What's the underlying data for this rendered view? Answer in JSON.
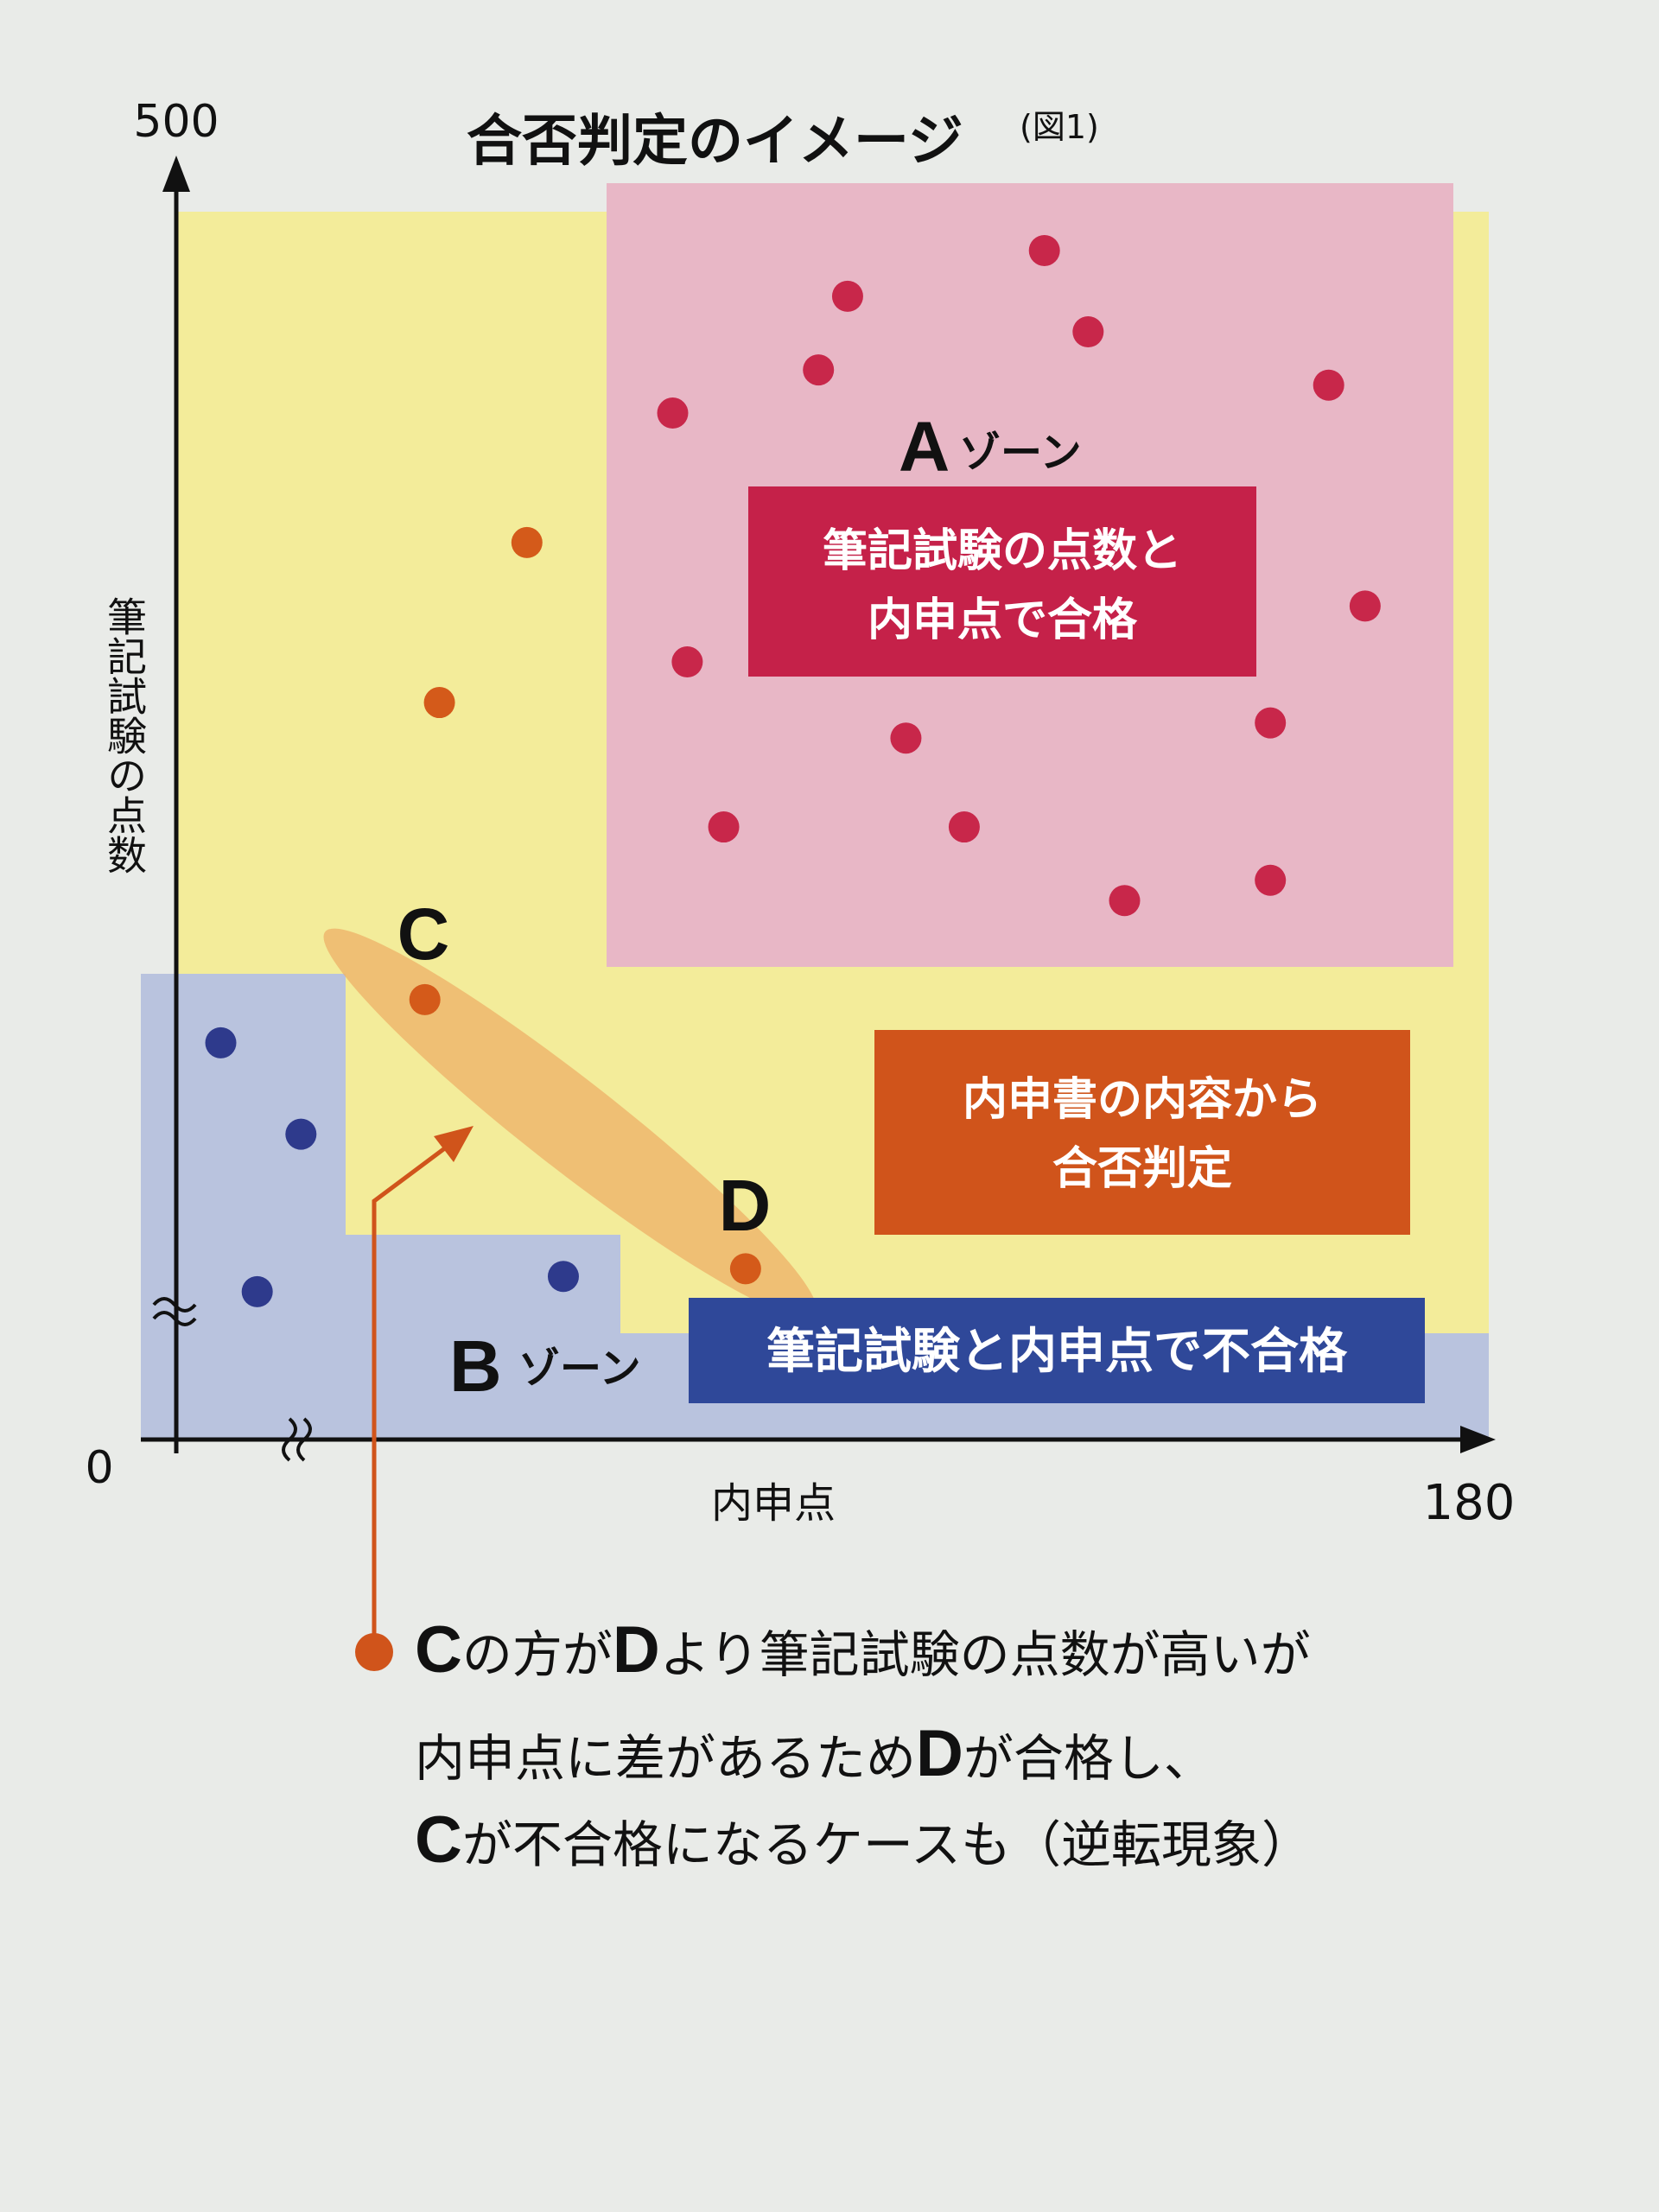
{
  "title": "合否判定のイメージ",
  "figure_ref": "(図1)",
  "colors": {
    "a_zone": "#e8b7c6",
    "background_zone": "#f3ec9a",
    "b_zone": "#b9c3de",
    "a_dot": "#c8274a",
    "c_d_dot": "#d45a1a",
    "b_dot": "#2e3a8c",
    "a_box": "#c52149",
    "middle_box": "#d0541b",
    "b_box": "#2f4899"
  },
  "chart_data": {
    "type": "scatter",
    "xlabel": "内申点",
    "ylabel": "筆記試験の点数",
    "x_ticks": [
      "0",
      "180"
    ],
    "y_ticks": [
      "500"
    ],
    "xlim": [
      0,
      180
    ],
    "ylim": [
      0,
      500
    ],
    "axis_break": true,
    "grid": false,
    "series": [
      {
        "zone": "A",
        "color": "#c8274a",
        "points": [
          [
            122,
            468
          ],
          [
            95,
            450
          ],
          [
            128,
            436
          ],
          [
            91,
            421
          ],
          [
            161,
            415
          ],
          [
            71,
            404
          ],
          [
            166,
            328
          ],
          [
            73,
            306
          ],
          [
            153,
            282
          ],
          [
            103,
            276
          ],
          [
            78,
            241
          ],
          [
            111,
            241
          ],
          [
            153,
            220
          ],
          [
            133,
            212
          ]
        ]
      },
      {
        "zone": "middle",
        "color": "#d45a1a",
        "points": [
          [
            51,
            353
          ],
          [
            39,
            290
          ],
          [
            37,
            173
          ],
          [
            81,
            67
          ]
        ]
      },
      {
        "zone": "B",
        "color": "#2e3a8c",
        "points": [
          [
            9,
            156
          ],
          [
            20,
            120
          ],
          [
            14,
            58
          ],
          [
            56,
            64
          ]
        ]
      }
    ],
    "point_labels": [
      {
        "text": "C",
        "x": 37,
        "y": 173
      },
      {
        "text": "D",
        "x": 81,
        "y": 67
      }
    ]
  },
  "zones": {
    "a": {
      "letter": "A",
      "suffix": "ゾーン",
      "box_lines": [
        "筆記試験の点数と",
        "内申点で合格"
      ]
    },
    "middle": {
      "box_lines": [
        "内申書の内容から",
        "合否判定"
      ]
    },
    "b": {
      "letter": "B",
      "suffix": "ゾーン",
      "box_text": "筆記試験と内申点で不合格"
    }
  },
  "note": {
    "line1": [
      {
        "t": "C",
        "b": true
      },
      {
        "t": "の方が"
      },
      {
        "t": "D",
        "b": true
      },
      {
        "t": "より筆記試験の点数が高いが"
      }
    ],
    "line2": [
      {
        "t": "内申点に差があるため"
      },
      {
        "t": "D",
        "b": true
      },
      {
        "t": "が合格し、"
      }
    ],
    "line3": [
      {
        "t": "C",
        "b": true
      },
      {
        "t": "が不合格になるケースも（逆転現象）"
      }
    ]
  }
}
